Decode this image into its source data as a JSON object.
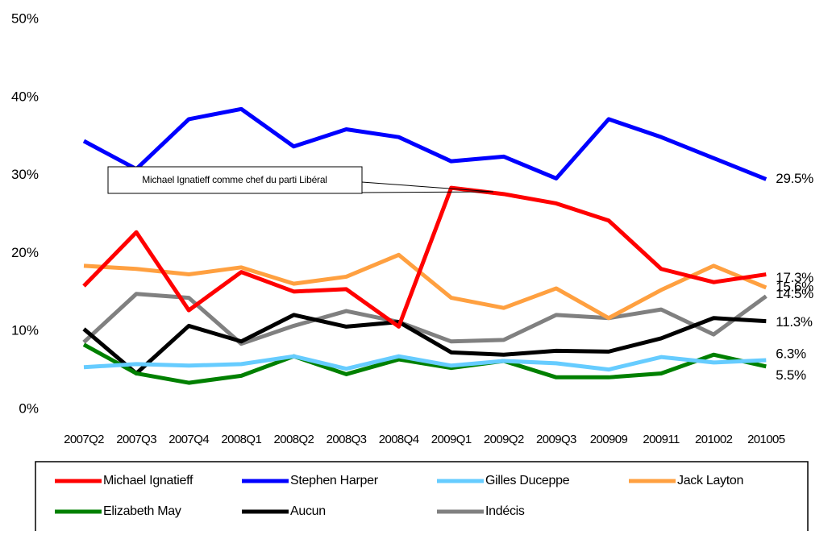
{
  "chart_data": {
    "type": "line",
    "categories": [
      "2007Q2",
      "2007Q3",
      "2007Q4",
      "2008Q1",
      "2008Q2",
      "2008Q3",
      "2008Q4",
      "2009Q1",
      "2009Q2",
      "2009Q3",
      "200909",
      "200911",
      "201002",
      "201005"
    ],
    "ylim": [
      0,
      50
    ],
    "yticks": [
      {
        "value": 0,
        "label": "0%"
      },
      {
        "value": 10,
        "label": "10%"
      },
      {
        "value": 20,
        "label": "20%"
      },
      {
        "value": 30,
        "label": "30%"
      },
      {
        "value": 40,
        "label": "40%"
      },
      {
        "value": 50,
        "label": "50%"
      }
    ],
    "annotation": "Michael Ignatieff  comme  chef  du parti Libéral",
    "series": [
      {
        "name": "Michael Ignatieff",
        "color": "#ff0000",
        "values": [
          15.8,
          22.7,
          12.7,
          17.6,
          15.1,
          15.4,
          10.6,
          28.4,
          27.6,
          26.4,
          24.2,
          18.0,
          16.3,
          17.3
        ],
        "value_labels": [
          null,
          null,
          null,
          null,
          null,
          null,
          null,
          null,
          null,
          null,
          null,
          null,
          null,
          "17.3%"
        ]
      },
      {
        "name": "Stephen Harper",
        "color": "#0000ff",
        "values": [
          34.4,
          30.8,
          37.2,
          38.5,
          33.7,
          35.9,
          34.9,
          31.8,
          32.4,
          29.6,
          37.2,
          34.9,
          32.2,
          29.5
        ],
        "value_labels": [
          null,
          null,
          null,
          null,
          null,
          null,
          null,
          null,
          null,
          null,
          null,
          null,
          null,
          "29.5%"
        ]
      },
      {
        "name": "Gilles Duceppe",
        "color": "#66ccff",
        "values": [
          5.4,
          5.8,
          5.6,
          5.8,
          6.8,
          5.2,
          6.8,
          5.6,
          6.2,
          5.9,
          5.1,
          6.7,
          6.0,
          6.3
        ],
        "value_labels": [
          null,
          null,
          null,
          null,
          null,
          null,
          null,
          null,
          null,
          null,
          null,
          null,
          null,
          "6.3%"
        ]
      },
      {
        "name": "Jack Layton",
        "color": "#ffa040",
        "values": [
          18.4,
          18.0,
          17.3,
          18.2,
          16.1,
          17.0,
          19.8,
          14.3,
          13.0,
          15.5,
          11.7,
          15.3,
          18.4,
          15.6
        ],
        "value_labels": [
          null,
          null,
          null,
          null,
          null,
          null,
          null,
          null,
          null,
          null,
          null,
          null,
          null,
          "15.6%"
        ]
      },
      {
        "name": "Elizabeth May",
        "color": "#008000",
        "values": [
          8.3,
          4.6,
          3.4,
          4.3,
          6.8,
          4.5,
          6.4,
          5.3,
          6.2,
          4.1,
          4.1,
          4.6,
          7.0,
          5.5
        ],
        "value_labels": [
          null,
          null,
          null,
          null,
          null,
          null,
          null,
          null,
          null,
          null,
          null,
          null,
          null,
          "5.5%"
        ]
      },
      {
        "name": "Aucun",
        "color": "#000000",
        "values": [
          10.3,
          4.6,
          10.7,
          8.7,
          12.1,
          10.6,
          11.2,
          7.3,
          7.0,
          7.5,
          7.4,
          9.1,
          11.7,
          11.3
        ],
        "value_labels": [
          null,
          null,
          null,
          null,
          null,
          null,
          null,
          null,
          null,
          null,
          null,
          null,
          null,
          "11.3%"
        ]
      },
      {
        "name": "Indécis",
        "color": "#808080",
        "values": [
          8.6,
          14.8,
          14.3,
          8.4,
          10.7,
          12.6,
          11.2,
          8.7,
          8.9,
          12.1,
          11.7,
          12.8,
          9.6,
          14.5
        ],
        "value_labels": [
          null,
          null,
          null,
          null,
          null,
          null,
          null,
          null,
          null,
          null,
          null,
          null,
          null,
          "14.5%"
        ]
      }
    ]
  }
}
